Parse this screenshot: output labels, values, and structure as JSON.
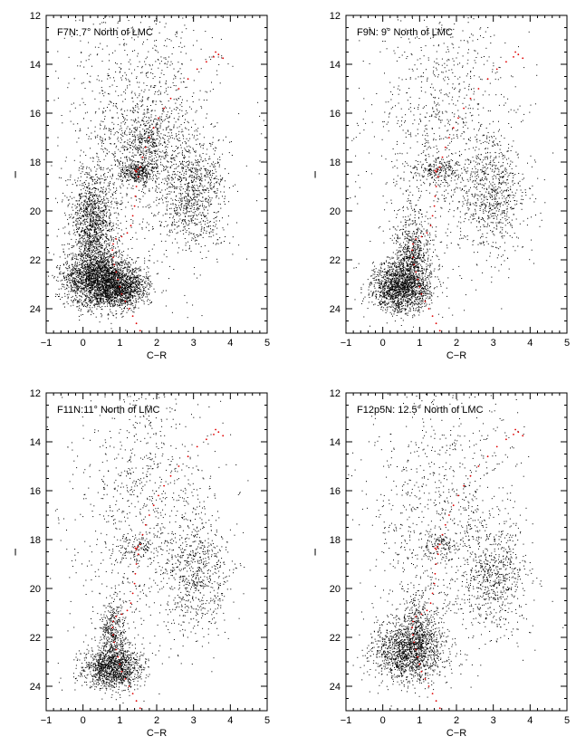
{
  "figure": {
    "panels": [
      {
        "id": "F7N",
        "label": "F7N: 7° North of LMC",
        "xlabel": "C−R",
        "ylabel": "I",
        "xticks": [
          "−1",
          "0",
          "1",
          "2",
          "3",
          "4",
          "5"
        ],
        "yticks": [
          "12",
          "14",
          "16",
          "18",
          "20",
          "22",
          "24"
        ]
      },
      {
        "id": "F9N",
        "label": "F9N: 9° North of LMC",
        "xlabel": "C−R",
        "ylabel": "I",
        "xticks": [
          "−1",
          "0",
          "1",
          "2",
          "3",
          "4",
          "5"
        ],
        "yticks": [
          "12",
          "14",
          "16",
          "18",
          "20",
          "22",
          "24"
        ]
      },
      {
        "id": "F11N",
        "label": "F11N:11° North of LMC",
        "xlabel": "C−R",
        "ylabel": "I",
        "xticks": [
          "−1",
          "0",
          "1",
          "2",
          "3",
          "4",
          "5"
        ],
        "yticks": [
          "12",
          "14",
          "16",
          "18",
          "20",
          "22",
          "24"
        ]
      },
      {
        "id": "F12p5N",
        "label": "F12p5N: 12.5° North of LMC",
        "xlabel": "C−R",
        "ylabel": "I",
        "xticks": [
          "−1",
          "0",
          "1",
          "2",
          "3",
          "4",
          "5"
        ],
        "yticks": [
          "12",
          "14",
          "16",
          "18",
          "20",
          "22",
          "24"
        ]
      }
    ]
  },
  "chart_data": [
    {
      "type": "scatter",
      "title": "F7N: 7° North of LMC",
      "xlabel": "C−R",
      "ylabel": "I",
      "xlim": [
        -1,
        5
      ],
      "ylim": [
        25,
        12
      ],
      "y_inverted": true,
      "series": [
        {
          "color": "#000000",
          "density_components": [
            {
              "cx": 0.4,
              "cy": 22.8,
              "sx": 0.45,
              "sy": 0.6,
              "n": 2200
            },
            {
              "cx": 0.25,
              "cy": 20.5,
              "sx": 0.3,
              "sy": 1.1,
              "n": 1300
            },
            {
              "cx": 1.1,
              "cy": 23.1,
              "sx": 0.35,
              "sy": 0.4,
              "n": 1000
            },
            {
              "cx": 1.45,
              "cy": 18.4,
              "sx": 0.25,
              "sy": 0.25,
              "n": 350
            },
            {
              "cx": 1.7,
              "cy": 17.2,
              "sx": 0.35,
              "sy": 0.7,
              "n": 450
            },
            {
              "cx": 3.0,
              "cy": 19.2,
              "sx": 0.45,
              "sy": 1.2,
              "n": 900
            },
            {
              "cx": 1.6,
              "cy": 16.5,
              "sx": 1.0,
              "sy": 2.8,
              "n": 1200
            }
          ]
        },
        {
          "color": "#e00000",
          "points": [
            [
              1.55,
              24.9
            ],
            [
              1.45,
              24.6
            ],
            [
              1.35,
              24.3
            ],
            [
              1.25,
              24.0
            ],
            [
              1.15,
              23.7
            ],
            [
              1.05,
              23.4
            ],
            [
              1.0,
              23.1
            ],
            [
              0.95,
              22.8
            ],
            [
              0.9,
              22.5
            ],
            [
              0.85,
              22.2
            ],
            [
              0.82,
              21.9
            ],
            [
              0.8,
              21.6
            ],
            [
              0.82,
              21.35
            ],
            [
              0.9,
              21.15
            ],
            [
              1.05,
              21.05
            ],
            [
              1.2,
              20.9
            ],
            [
              1.3,
              20.6
            ],
            [
              1.35,
              20.2
            ],
            [
              1.4,
              19.8
            ],
            [
              1.42,
              19.4
            ],
            [
              1.45,
              19.0
            ],
            [
              1.5,
              18.6
            ],
            [
              1.55,
              18.2
            ],
            [
              1.62,
              17.8
            ],
            [
              1.7,
              17.4
            ],
            [
              1.8,
              17.0
            ],
            [
              1.92,
              16.6
            ],
            [
              2.05,
              16.2
            ],
            [
              2.2,
              15.8
            ],
            [
              2.38,
              15.4
            ],
            [
              2.6,
              15.0
            ],
            [
              2.85,
              14.6
            ],
            [
              3.1,
              14.2
            ],
            [
              3.35,
              13.9
            ],
            [
              3.55,
              13.7
            ],
            [
              3.68,
              13.6
            ],
            [
              3.8,
              13.75
            ],
            [
              3.6,
              13.5
            ],
            [
              1.42,
              18.35
            ],
            [
              1.48,
              18.3
            ],
            [
              1.45,
              18.4
            ]
          ]
        }
      ]
    },
    {
      "type": "scatter",
      "title": "F9N: 9° North of LMC",
      "xlabel": "C−R",
      "ylabel": "I",
      "xlim": [
        -1,
        5
      ],
      "ylim": [
        25,
        12
      ],
      "y_inverted": true,
      "series": [
        {
          "color": "#000000",
          "density_components": [
            {
              "cx": 0.5,
              "cy": 23.1,
              "sx": 0.4,
              "sy": 0.5,
              "n": 1600
            },
            {
              "cx": 0.8,
              "cy": 21.8,
              "sx": 0.25,
              "sy": 0.8,
              "n": 700
            },
            {
              "cx": 1.5,
              "cy": 18.3,
              "sx": 0.3,
              "sy": 0.3,
              "n": 200
            },
            {
              "cx": 3.0,
              "cy": 19.3,
              "sx": 0.45,
              "sy": 1.2,
              "n": 700
            },
            {
              "cx": 1.6,
              "cy": 16.5,
              "sx": 1.0,
              "sy": 2.8,
              "n": 1000
            }
          ]
        },
        {
          "color": "#e00000",
          "points": [
            [
              1.55,
              24.9
            ],
            [
              1.45,
              24.6
            ],
            [
              1.35,
              24.3
            ],
            [
              1.25,
              24.0
            ],
            [
              1.15,
              23.7
            ],
            [
              1.05,
              23.4
            ],
            [
              1.0,
              23.1
            ],
            [
              0.95,
              22.8
            ],
            [
              0.9,
              22.5
            ],
            [
              0.85,
              22.2
            ],
            [
              0.82,
              21.9
            ],
            [
              0.8,
              21.6
            ],
            [
              0.82,
              21.35
            ],
            [
              0.9,
              21.15
            ],
            [
              1.05,
              21.05
            ],
            [
              1.2,
              20.9
            ],
            [
              1.3,
              20.6
            ],
            [
              1.35,
              20.2
            ],
            [
              1.4,
              19.8
            ],
            [
              1.42,
              19.4
            ],
            [
              1.45,
              19.0
            ],
            [
              1.5,
              18.6
            ],
            [
              1.55,
              18.2
            ],
            [
              1.62,
              17.8
            ],
            [
              1.7,
              17.4
            ],
            [
              1.8,
              17.0
            ],
            [
              1.92,
              16.6
            ],
            [
              2.05,
              16.2
            ],
            [
              2.2,
              15.8
            ],
            [
              2.38,
              15.4
            ],
            [
              2.6,
              15.0
            ],
            [
              2.85,
              14.6
            ],
            [
              3.1,
              14.2
            ],
            [
              3.35,
              13.9
            ],
            [
              3.55,
              13.7
            ],
            [
              3.68,
              13.6
            ],
            [
              3.8,
              13.75
            ],
            [
              3.6,
              13.5
            ],
            [
              1.42,
              18.35
            ],
            [
              1.48,
              18.3
            ],
            [
              1.45,
              18.4
            ]
          ]
        }
      ]
    },
    {
      "type": "scatter",
      "title": "F11N:11° North of LMC",
      "xlabel": "C−R",
      "ylabel": "I",
      "xlim": [
        -1,
        5
      ],
      "ylim": [
        25,
        12
      ],
      "y_inverted": true,
      "series": [
        {
          "color": "#000000",
          "density_components": [
            {
              "cx": 0.8,
              "cy": 23.2,
              "sx": 0.4,
              "sy": 0.45,
              "n": 1300
            },
            {
              "cx": 0.8,
              "cy": 21.8,
              "sx": 0.2,
              "sy": 0.7,
              "n": 400
            },
            {
              "cx": 1.5,
              "cy": 18.3,
              "sx": 0.3,
              "sy": 0.3,
              "n": 120
            },
            {
              "cx": 3.1,
              "cy": 19.4,
              "sx": 0.45,
              "sy": 1.2,
              "n": 650
            },
            {
              "cx": 1.6,
              "cy": 16.5,
              "sx": 1.0,
              "sy": 2.8,
              "n": 900
            }
          ]
        },
        {
          "color": "#e00000",
          "points": [
            [
              1.55,
              24.9
            ],
            [
              1.45,
              24.6
            ],
            [
              1.35,
              24.3
            ],
            [
              1.25,
              24.0
            ],
            [
              1.15,
              23.7
            ],
            [
              1.05,
              23.4
            ],
            [
              1.0,
              23.1
            ],
            [
              0.95,
              22.8
            ],
            [
              0.9,
              22.5
            ],
            [
              0.85,
              22.2
            ],
            [
              0.82,
              21.9
            ],
            [
              0.8,
              21.6
            ],
            [
              0.82,
              21.35
            ],
            [
              0.9,
              21.15
            ],
            [
              1.05,
              21.05
            ],
            [
              1.2,
              20.9
            ],
            [
              1.3,
              20.6
            ],
            [
              1.35,
              20.2
            ],
            [
              1.4,
              19.8
            ],
            [
              1.42,
              19.4
            ],
            [
              1.45,
              19.0
            ],
            [
              1.5,
              18.6
            ],
            [
              1.55,
              18.2
            ],
            [
              1.62,
              17.8
            ],
            [
              1.7,
              17.4
            ],
            [
              1.8,
              17.0
            ],
            [
              1.92,
              16.6
            ],
            [
              2.05,
              16.2
            ],
            [
              2.2,
              15.8
            ],
            [
              2.38,
              15.4
            ],
            [
              2.6,
              15.0
            ],
            [
              2.85,
              14.6
            ],
            [
              3.1,
              14.2
            ],
            [
              3.35,
              13.9
            ],
            [
              3.55,
              13.7
            ],
            [
              3.68,
              13.6
            ],
            [
              3.8,
              13.75
            ],
            [
              3.6,
              13.5
            ],
            [
              1.42,
              18.35
            ],
            [
              1.48,
              18.3
            ],
            [
              1.45,
              18.4
            ]
          ]
        }
      ]
    },
    {
      "type": "scatter",
      "title": "F12p5N: 12.5° North of LMC",
      "xlabel": "C−R",
      "ylabel": "I",
      "xlim": [
        -1,
        5
      ],
      "ylim": [
        25,
        12
      ],
      "y_inverted": true,
      "series": [
        {
          "color": "#000000",
          "density_components": [
            {
              "cx": 0.7,
              "cy": 22.6,
              "sx": 0.5,
              "sy": 0.6,
              "n": 1400
            },
            {
              "cx": 0.9,
              "cy": 21.5,
              "sx": 0.3,
              "sy": 0.8,
              "n": 400
            },
            {
              "cx": 1.5,
              "cy": 18.3,
              "sx": 0.3,
              "sy": 0.3,
              "n": 120
            },
            {
              "cx": 3.0,
              "cy": 19.5,
              "sx": 0.45,
              "sy": 1.2,
              "n": 650
            },
            {
              "cx": 1.6,
              "cy": 16.5,
              "sx": 1.0,
              "sy": 2.8,
              "n": 900
            }
          ]
        },
        {
          "color": "#e00000",
          "points": [
            [
              1.55,
              24.9
            ],
            [
              1.45,
              24.6
            ],
            [
              1.35,
              24.3
            ],
            [
              1.25,
              24.0
            ],
            [
              1.15,
              23.7
            ],
            [
              1.05,
              23.4
            ],
            [
              1.0,
              23.1
            ],
            [
              0.95,
              22.8
            ],
            [
              0.9,
              22.5
            ],
            [
              0.85,
              22.2
            ],
            [
              0.82,
              21.9
            ],
            [
              0.8,
              21.6
            ],
            [
              0.82,
              21.35
            ],
            [
              0.9,
              21.15
            ],
            [
              1.05,
              21.05
            ],
            [
              1.2,
              20.9
            ],
            [
              1.3,
              20.6
            ],
            [
              1.35,
              20.2
            ],
            [
              1.4,
              19.8
            ],
            [
              1.42,
              19.4
            ],
            [
              1.45,
              19.0
            ],
            [
              1.5,
              18.6
            ],
            [
              1.55,
              18.2
            ],
            [
              1.62,
              17.8
            ],
            [
              1.7,
              17.4
            ],
            [
              1.8,
              17.0
            ],
            [
              1.92,
              16.6
            ],
            [
              2.05,
              16.2
            ],
            [
              2.2,
              15.8
            ],
            [
              2.38,
              15.4
            ],
            [
              2.6,
              15.0
            ],
            [
              2.85,
              14.6
            ],
            [
              3.1,
              14.2
            ],
            [
              3.35,
              13.9
            ],
            [
              3.55,
              13.7
            ],
            [
              3.68,
              13.6
            ],
            [
              3.8,
              13.75
            ],
            [
              3.6,
              13.5
            ],
            [
              1.42,
              18.35
            ],
            [
              1.48,
              18.3
            ],
            [
              1.45,
              18.4
            ]
          ]
        }
      ]
    }
  ]
}
